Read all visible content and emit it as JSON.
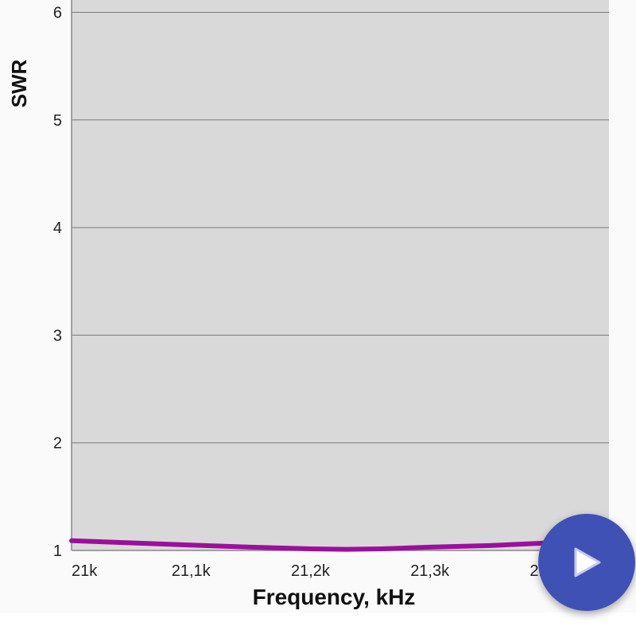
{
  "chart_data": {
    "type": "line",
    "title": "",
    "xlabel": "Frequency, kHz",
    "ylabel": "SWR",
    "xlim": [
      21000,
      21450
    ],
    "ylim": [
      1,
      6.12
    ],
    "x_ticks": [
      21000,
      21100,
      21200,
      21300,
      21400
    ],
    "x_tick_labels": [
      "21k",
      "21,1k",
      "21,2k",
      "21,3k",
      "21,4k"
    ],
    "y_ticks": [
      1,
      2,
      3,
      4,
      5,
      6
    ],
    "y_tick_labels": [
      "1",
      "2",
      "3",
      "4",
      "5",
      "6"
    ],
    "grid": "horizontal",
    "background": "#d9d9d9",
    "series": [
      {
        "color": "#9c0f9c",
        "x": [
          21000,
          21050,
          21100,
          21150,
          21200,
          21230,
          21260,
          21300,
          21350,
          21400,
          21450
        ],
        "y": [
          1.09,
          1.07,
          1.05,
          1.03,
          1.015,
          1.01,
          1.015,
          1.03,
          1.045,
          1.07,
          1.09
        ]
      }
    ]
  },
  "fab": {
    "icon": "play-icon",
    "color": "#3f51b5"
  }
}
